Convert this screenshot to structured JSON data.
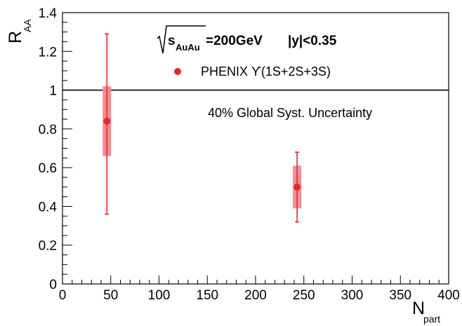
{
  "chart_data": {
    "type": "scatter",
    "xlabel": "N",
    "xlabel_sub": "part",
    "ylabel": "R",
    "ylabel_sub": "AA",
    "xlim": [
      0,
      400
    ],
    "ylim": [
      0,
      1.4
    ],
    "x_ticks": [
      "0",
      "50",
      "100",
      "150",
      "200",
      "250",
      "300",
      "350",
      "400"
    ],
    "y_ticks": [
      "0",
      "0.2",
      "0.4",
      "0.6",
      "0.8",
      "1",
      "1.2",
      "1.4"
    ],
    "reference_line": 1,
    "series": [
      {
        "name": "PHENIX ϒ(1S+2S+3S)",
        "color": "#e8262c",
        "syst_color": "#f08e92",
        "points": [
          {
            "x": 46,
            "y": 0.84,
            "stat_low": 0.36,
            "stat_high": 1.29,
            "syst_low": 0.66,
            "syst_high": 1.02
          },
          {
            "x": 243,
            "y": 0.5,
            "stat_low": 0.32,
            "stat_high": 0.68,
            "syst_low": 0.39,
            "syst_high": 0.61
          }
        ]
      }
    ],
    "annotations": {
      "energy_sqrt_s": "s",
      "energy_sub": "AuAu",
      "energy_value": "=200GeV",
      "rapidity_cut": "|y|<0.35",
      "global_syst": "40% Global Syst. Uncertainty"
    }
  }
}
